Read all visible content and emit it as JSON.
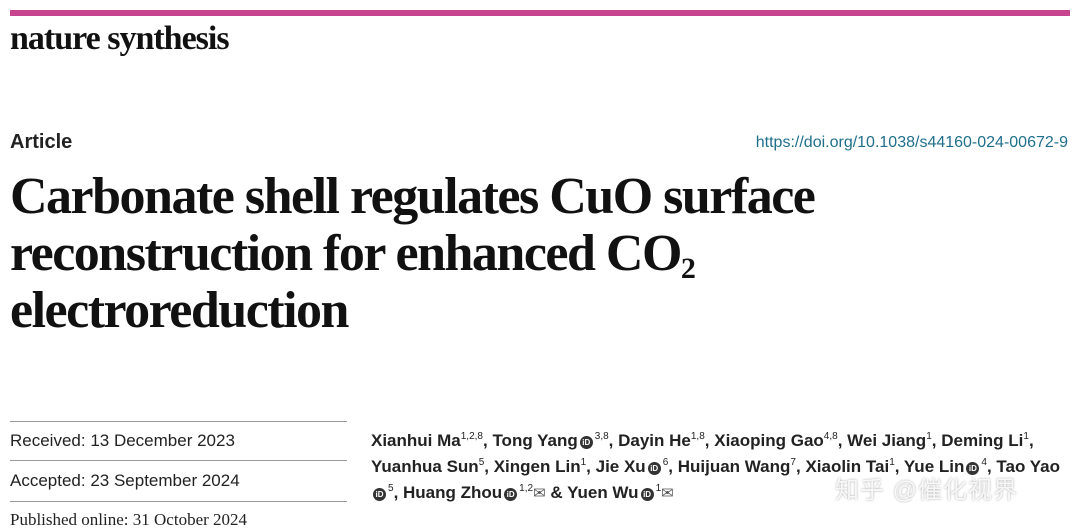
{
  "journal": "nature synthesis",
  "article_type": "Article",
  "doi": "https://doi.org/10.1038/s44160-024-00672-9",
  "title": {
    "line1": "Carbonate shell regulates CuO surface",
    "line2_text": "reconstruction for enhanced CO",
    "line2_sub": "2",
    "line3": "electroreduction"
  },
  "dates": {
    "received": "Received: 13 December 2023",
    "accepted": "Accepted: 23 September 2024",
    "published": "Published online: 31 October 2024"
  },
  "authors": [
    {
      "name": "Xianhui Ma",
      "sup": "1,2,8",
      "orcid": false,
      "sep": ", "
    },
    {
      "name": "Tong Yang",
      "sup": "3,8",
      "orcid": true,
      "sep": ", "
    },
    {
      "name": "Dayin He",
      "sup": "1,8",
      "orcid": false,
      "sep": ", "
    },
    {
      "name": "Xiaoping Gao",
      "sup": "4,8",
      "orcid": false,
      "sep": ", "
    },
    {
      "name": "Wei Jiang",
      "sup": "1",
      "orcid": false,
      "sep": ", "
    },
    {
      "name": "Deming Li",
      "sup": "1",
      "orcid": false,
      "sep": ", "
    },
    {
      "name": "Yuanhua Sun",
      "sup": "5",
      "orcid": false,
      "sep": ", "
    },
    {
      "name": "Xingen Lin",
      "sup": "1",
      "orcid": false,
      "sep": ", "
    },
    {
      "name": "Jie Xu",
      "sup": "6",
      "orcid": true,
      "sep": ", "
    },
    {
      "name": "Huijuan Wang",
      "sup": "7",
      "orcid": false,
      "sep": ", "
    },
    {
      "name": "Xiaolin Tai",
      "sup": "1",
      "orcid": false,
      "sep": ", "
    },
    {
      "name": "Yue Lin",
      "sup": "4",
      "orcid": true,
      "sep": ", "
    },
    {
      "name": "Tao Yao",
      "sup": "5",
      "orcid": true,
      "sep": ", "
    },
    {
      "name": "Huang Zhou",
      "sup": "1,2",
      "orcid": true,
      "mail": true,
      "sep": " & "
    },
    {
      "name": "Yuen Wu",
      "sup": "1",
      "orcid": true,
      "mail": true,
      "sep": ""
    }
  ],
  "watermark": "知乎 @催化视界"
}
